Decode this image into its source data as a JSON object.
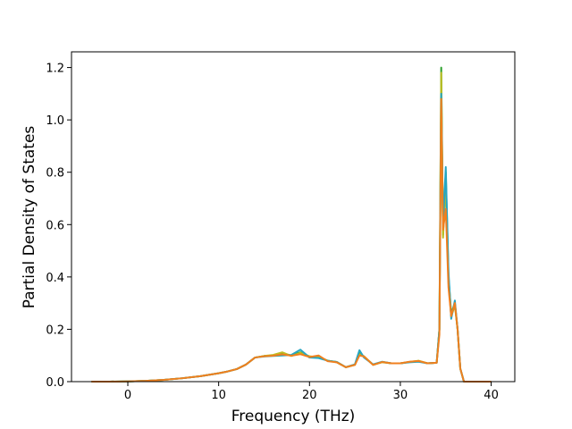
{
  "chart_data": {
    "type": "line",
    "xlabel": "Frequency (THz)",
    "ylabel": "Partial Density of States",
    "x": [
      -4,
      -2,
      0,
      2,
      4,
      6,
      8,
      10,
      11,
      12,
      13,
      14,
      15,
      16,
      17,
      18,
      19,
      20,
      21,
      22,
      23,
      24,
      25,
      25.5,
      26,
      27,
      28,
      29,
      30,
      31,
      32,
      33,
      34,
      34.3,
      34.5,
      34.7,
      35,
      35.3,
      35.6,
      36,
      36.3,
      36.6,
      37,
      38,
      40
    ],
    "series": [
      {
        "color": "#2ca02c",
        "values": [
          0,
          0,
          0.001,
          0.003,
          0.007,
          0.013,
          0.021,
          0.032,
          0.039,
          0.048,
          0.065,
          0.092,
          0.098,
          0.1,
          0.108,
          0.1,
          0.112,
          0.095,
          0.095,
          0.08,
          0.075,
          0.055,
          0.065,
          0.11,
          0.095,
          0.065,
          0.075,
          0.07,
          0.07,
          0.075,
          0.078,
          0.07,
          0.072,
          0.2,
          1.2,
          0.56,
          0.8,
          0.4,
          0.26,
          0.3,
          0.2,
          0.05,
          0,
          0,
          0
        ]
      },
      {
        "color": "#bcbd22",
        "values": [
          0,
          0,
          0.001,
          0.003,
          0.007,
          0.013,
          0.021,
          0.032,
          0.039,
          0.048,
          0.065,
          0.092,
          0.098,
          0.102,
          0.112,
          0.098,
          0.11,
          0.097,
          0.093,
          0.08,
          0.074,
          0.055,
          0.064,
          0.105,
          0.097,
          0.064,
          0.074,
          0.07,
          0.07,
          0.075,
          0.08,
          0.07,
          0.072,
          0.2,
          1.18,
          0.55,
          0.76,
          0.38,
          0.25,
          0.29,
          0.2,
          0.05,
          0,
          0,
          0
        ]
      },
      {
        "color": "#26a5c2",
        "values": [
          0,
          0,
          0.001,
          0.003,
          0.007,
          0.013,
          0.021,
          0.032,
          0.039,
          0.048,
          0.065,
          0.092,
          0.096,
          0.098,
          0.1,
          0.102,
          0.122,
          0.092,
          0.09,
          0.08,
          0.075,
          0.055,
          0.066,
          0.12,
          0.092,
          0.066,
          0.076,
          0.07,
          0.07,
          0.074,
          0.076,
          0.07,
          0.072,
          0.2,
          1.1,
          0.6,
          0.82,
          0.42,
          0.24,
          0.31,
          0.2,
          0.05,
          0,
          0,
          0
        ]
      },
      {
        "color": "#f07f1e",
        "values": [
          0,
          0,
          0.001,
          0.003,
          0.007,
          0.013,
          0.021,
          0.032,
          0.039,
          0.048,
          0.065,
          0.092,
          0.097,
          0.099,
          0.104,
          0.099,
          0.105,
          0.094,
          0.1,
          0.078,
          0.074,
          0.055,
          0.064,
          0.1,
          0.096,
          0.064,
          0.075,
          0.07,
          0.07,
          0.076,
          0.079,
          0.07,
          0.072,
          0.18,
          1.08,
          0.58,
          0.66,
          0.36,
          0.25,
          0.3,
          0.2,
          0.05,
          0,
          0,
          0
        ]
      }
    ],
    "xlim": [
      -6.2,
      42.6
    ],
    "ylim": [
      0,
      1.26
    ],
    "xticks": [
      0,
      10,
      20,
      30,
      40
    ],
    "yticks": [
      {
        "value": 0,
        "label": "0.0"
      },
      0.2,
      0.4,
      0.6,
      0.8,
      {
        "value": 1,
        "label": "1.0"
      },
      1.2
    ]
  }
}
